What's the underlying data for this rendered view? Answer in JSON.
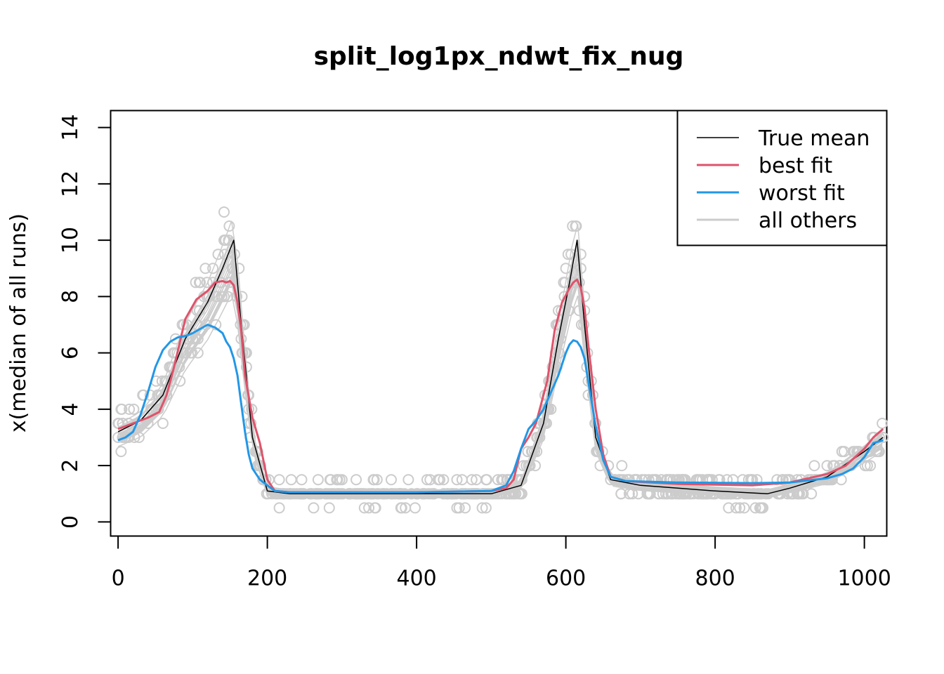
{
  "chart_data": {
    "type": "line",
    "title": "split_log1px_ndwt_fix_nug",
    "xlabel": "",
    "ylabel": "x(median of all runs)",
    "xlim": [
      -10,
      1030
    ],
    "ylim": [
      -0.5,
      14.6
    ],
    "xticks": [
      0,
      200,
      400,
      600,
      800,
      1000
    ],
    "yticks": [
      0,
      2,
      4,
      6,
      8,
      10,
      12,
      14
    ],
    "grid": false,
    "legend": {
      "position": "top-right",
      "entries": [
        {
          "name": "True mean",
          "color": "#000000"
        },
        {
          "name": "best fit",
          "color": "#DF536B"
        },
        {
          "name": "worst fit",
          "color": "#2297E6"
        },
        {
          "name": "all others",
          "color": "#CCCCCC"
        }
      ]
    },
    "series": [
      {
        "name": "True mean",
        "color": "#000000",
        "x": [
          0,
          30,
          60,
          90,
          120,
          140,
          155,
          165,
          180,
          200,
          230,
          300,
          400,
          500,
          540,
          570,
          590,
          605,
          615,
          625,
          640,
          660,
          700,
          750,
          800,
          870,
          900,
          950,
          1000,
          1025
        ],
        "y": [
          3.2,
          3.6,
          4.5,
          6.5,
          7.8,
          9.0,
          10.0,
          7.0,
          3.0,
          1.1,
          1.0,
          1.0,
          1.0,
          1.0,
          1.3,
          3.5,
          6.5,
          8.5,
          10.0,
          7.0,
          3.0,
          1.5,
          1.3,
          1.2,
          1.1,
          1.0,
          1.2,
          1.6,
          2.5,
          3.0
        ]
      },
      {
        "name": "best fit",
        "color": "#DF536B",
        "x": [
          0,
          20,
          40,
          55,
          65,
          75,
          90,
          105,
          120,
          130,
          140,
          145,
          150,
          155,
          160,
          165,
          170,
          180,
          190,
          200,
          210,
          230,
          300,
          400,
          500,
          520,
          530,
          540,
          550,
          560,
          575,
          585,
          595,
          605,
          610,
          615,
          620,
          625,
          630,
          640,
          650,
          660,
          680,
          750,
          850,
          900,
          950,
          975,
          1000,
          1012,
          1025
        ],
        "y": [
          3.3,
          3.5,
          3.7,
          3.9,
          4.5,
          5.5,
          7.2,
          7.9,
          8.2,
          8.5,
          8.55,
          8.5,
          8.55,
          8.4,
          7.8,
          6.8,
          5.2,
          3.7,
          2.8,
          1.5,
          1.1,
          1.05,
          1.05,
          1.05,
          1.1,
          1.2,
          1.5,
          2.6,
          3.0,
          3.5,
          5.0,
          6.8,
          7.8,
          8.3,
          8.5,
          8.6,
          8.3,
          7.6,
          6.3,
          4.0,
          2.4,
          1.6,
          1.45,
          1.35,
          1.3,
          1.4,
          1.7,
          2.0,
          2.6,
          3.0,
          3.3
        ]
      },
      {
        "name": "worst fit",
        "color": "#2297E6",
        "x": [
          0,
          10,
          20,
          30,
          40,
          50,
          60,
          70,
          80,
          90,
          100,
          110,
          120,
          130,
          140,
          145,
          150,
          155,
          160,
          165,
          170,
          175,
          180,
          190,
          200,
          210,
          230,
          300,
          400,
          500,
          520,
          530,
          540,
          550,
          560,
          570,
          580,
          590,
          600,
          605,
          610,
          615,
          620,
          625,
          630,
          640,
          650,
          660,
          680,
          750,
          850,
          900,
          950,
          970,
          985,
          1000,
          1012,
          1025
        ],
        "y": [
          2.9,
          3.0,
          3.2,
          3.8,
          4.6,
          5.5,
          6.1,
          6.4,
          6.55,
          6.6,
          6.7,
          6.85,
          7.0,
          6.9,
          6.7,
          6.4,
          6.2,
          5.8,
          5.2,
          4.2,
          3.2,
          2.4,
          1.9,
          1.5,
          1.3,
          1.1,
          1.05,
          1.05,
          1.05,
          1.1,
          1.3,
          1.8,
          2.6,
          3.3,
          3.6,
          4.0,
          4.6,
          5.2,
          6.0,
          6.3,
          6.45,
          6.4,
          6.2,
          5.8,
          5.0,
          3.4,
          2.2,
          1.6,
          1.45,
          1.4,
          1.38,
          1.4,
          1.55,
          1.7,
          1.9,
          2.3,
          2.8,
          2.9
        ]
      }
    ]
  }
}
